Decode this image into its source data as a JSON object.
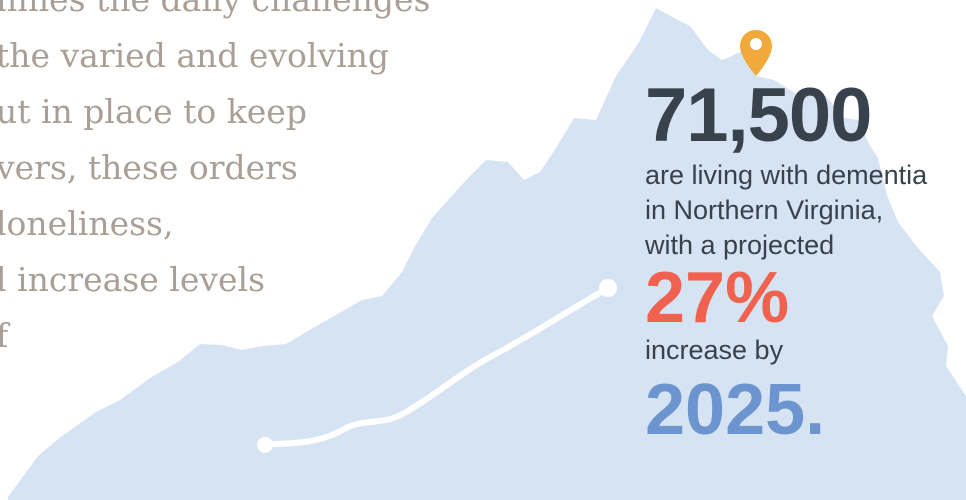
{
  "colors": {
    "map_fill": "#d6e3f2",
    "text_gray": "#a99f97",
    "headline": "#37424d",
    "accent_coral": "#f0624f",
    "accent_blue": "#6c95cf",
    "pin": "#f2a93b",
    "route": "#ffffff"
  },
  "body_lines": [
    "nnies the daily challenges",
    "the varied and evolving",
    "ut in place to keep",
    "vers, these orders",
    "loneliness,",
    "l increase levels",
    "f"
  ],
  "stat": {
    "number": "71,500",
    "line1": "are living with dementia",
    "line2": "in Northern Virginia,",
    "line3": "with a projected",
    "percent": "27%",
    "line4": "increase by",
    "year": "2025."
  },
  "icons": {
    "pin": "location-pin-icon"
  }
}
